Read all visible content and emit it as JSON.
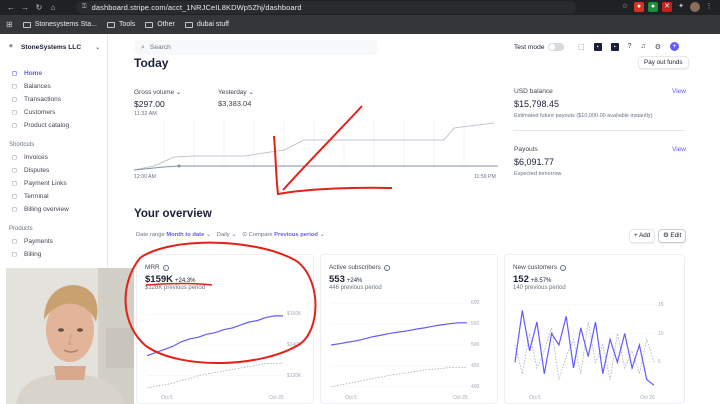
{
  "browser": {
    "url": "dashboard.stripe.com/acct_1NRJCeIL8KDWp5Zhj/dashboard",
    "bookmarks": [
      "Stonesystems Sta...",
      "Tools",
      "Other",
      "dubai stuff"
    ]
  },
  "sidebar": {
    "account": "StoneSystems LLC",
    "items": [
      {
        "label": "Home",
        "icon": "home-icon",
        "active": true
      },
      {
        "label": "Balances",
        "icon": "balances-icon"
      },
      {
        "label": "Transactions",
        "icon": "transactions-icon"
      },
      {
        "label": "Customers",
        "icon": "customers-icon"
      },
      {
        "label": "Product catalog",
        "icon": "catalog-icon"
      }
    ],
    "shortcuts_title": "Shortcuts",
    "shortcuts": [
      {
        "label": "Invoices",
        "icon": "invoice-icon"
      },
      {
        "label": "Disputes",
        "icon": "dispute-icon"
      },
      {
        "label": "Payment Links",
        "icon": "link-icon"
      },
      {
        "label": "Terminal",
        "icon": "terminal-icon"
      },
      {
        "label": "Billing overview",
        "icon": "billing-icon"
      }
    ],
    "products_title": "Products",
    "products": [
      {
        "label": "Payments",
        "icon": "payments-icon"
      },
      {
        "label": "Billing",
        "icon": "billing-icon"
      }
    ]
  },
  "topbar": {
    "search_placeholder": "Search",
    "test_mode_label": "Test mode"
  },
  "today": {
    "title": "Today",
    "gross_volume_label": "Gross volume",
    "gross_volume_value": "$297.00",
    "gross_volume_time": "11:32 AM",
    "yesterday_label": "Yesterday",
    "yesterday_value": "$3,383.04",
    "x_start": "12:00 AM",
    "x_end": "11:59 PM",
    "payout_button": "Pay out funds",
    "usd_balance_label": "USD balance",
    "usd_balance_value": "$15,798.45",
    "usd_balance_sub": "Estimated future payouts ($10,000.00 available instantly)",
    "payouts_label": "Payouts",
    "payouts_value": "$6,091.77",
    "payouts_sub": "Expected tomorrow",
    "view_label": "View"
  },
  "overview": {
    "title": "Your overview",
    "filter_date_label": "Date range",
    "filter_date_value": "Month to date",
    "filter_interval": "Daily",
    "compare_label": "Compare",
    "compare_value": "Previous period",
    "add_label": "Add",
    "edit_label": "Edit"
  },
  "cards": [
    {
      "title": "MRR",
      "value": "$159K",
      "change": "+24.3%",
      "previous": "$128K previous period",
      "ticks": [
        "$160K",
        "$140K",
        "$120K"
      ],
      "x_labels": [
        "Oct 5",
        "Oct 26"
      ],
      "chart_data": {
        "type": "line",
        "y_range": [
          110,
          170
        ],
        "current": [
          133,
          135,
          137,
          139,
          142,
          144,
          145,
          147,
          148,
          150,
          151,
          153,
          155,
          156,
          158,
          159,
          159
        ],
        "previous": [
          112,
          113,
          114,
          115,
          117,
          118,
          120,
          121,
          122,
          123,
          124,
          125,
          126,
          127,
          128,
          128,
          128
        ]
      }
    },
    {
      "title": "Active subscribers",
      "value": "553",
      "change": "+24%",
      "previous": "446 previous period",
      "ticks": [
        "600",
        "550",
        "500",
        "450",
        "400"
      ],
      "x_labels": [
        "Oct 5",
        "Oct 26"
      ],
      "chart_data": {
        "type": "line",
        "y_range": [
          390,
          610
        ],
        "current": [
          500,
          503,
          507,
          510,
          515,
          520,
          524,
          528,
          531,
          534,
          538,
          541,
          545,
          548,
          551,
          553,
          553
        ],
        "previous": [
          400,
          404,
          408,
          412,
          416,
          420,
          424,
          428,
          431,
          434,
          437,
          440,
          442,
          444,
          446,
          446,
          446
        ]
      }
    },
    {
      "title": "New customers",
      "value": "152",
      "change": "+8.57%",
      "previous": "140 previous period",
      "ticks": [
        "15",
        "10",
        "5"
      ],
      "x_labels": [
        "Oct 5",
        "Oct 26"
      ],
      "chart_data": {
        "type": "line",
        "y_range": [
          0,
          16
        ],
        "current": [
          5,
          14,
          7,
          12,
          3,
          10,
          8,
          13,
          4,
          11,
          6,
          12,
          3,
          9,
          5,
          10,
          4,
          8,
          2,
          1
        ],
        "previous": [
          8,
          3,
          10,
          4,
          7,
          11,
          2,
          6,
          9,
          3,
          12,
          5,
          8,
          2,
          10,
          4,
          7,
          3,
          9,
          5
        ]
      }
    }
  ],
  "colors": {
    "accent": "#635bff",
    "annotation": "#e2231a"
  }
}
